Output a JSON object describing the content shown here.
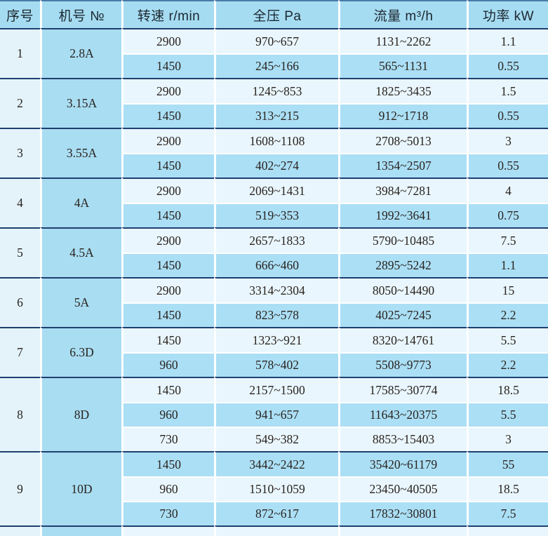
{
  "table": {
    "headers": [
      {
        "key": "serial",
        "label": "序号"
      },
      {
        "key": "model",
        "label": "机号 №"
      },
      {
        "key": "speed",
        "label": "转速 r/min"
      },
      {
        "key": "pressure",
        "label": "全压 Pa"
      },
      {
        "key": "flow",
        "label": "流量 m³/h"
      },
      {
        "key": "power",
        "label": "功率 kW"
      }
    ],
    "column_keys": [
      "speed",
      "pressure",
      "flow",
      "power"
    ],
    "groups": [
      {
        "index": "1",
        "model": "2.8A",
        "rows": [
          [
            "2900",
            "970~657",
            "1131~2262",
            "1.1"
          ],
          [
            "1450",
            "245~166",
            "565~1131",
            "0.55"
          ]
        ]
      },
      {
        "index": "2",
        "model": "3.15A",
        "rows": [
          [
            "2900",
            "1245~853",
            "1825~3435",
            "1.5"
          ],
          [
            "1450",
            "313~215",
            "912~1718",
            "0.55"
          ]
        ]
      },
      {
        "index": "3",
        "model": "3.55A",
        "rows": [
          [
            "2900",
            "1608~1108",
            "2708~5013",
            "3"
          ],
          [
            "1450",
            "402~274",
            "1354~2507",
            "0.55"
          ]
        ]
      },
      {
        "index": "4",
        "model": "4A",
        "rows": [
          [
            "2900",
            "2069~1431",
            "3984~7281",
            "4"
          ],
          [
            "1450",
            "519~353",
            "1992~3641",
            "0.75"
          ]
        ]
      },
      {
        "index": "5",
        "model": "4.5A",
        "rows": [
          [
            "2900",
            "2657~1833",
            "5790~10485",
            "7.5"
          ],
          [
            "1450",
            "666~460",
            "2895~5242",
            "1.1"
          ]
        ]
      },
      {
        "index": "6",
        "model": "5A",
        "rows": [
          [
            "2900",
            "3314~2304",
            "8050~14490",
            "15"
          ],
          [
            "1450",
            "823~578",
            "4025~7245",
            "2.2"
          ]
        ]
      },
      {
        "index": "7",
        "model": "6.3D",
        "rows": [
          [
            "1450",
            "1323~921",
            "8320~14761",
            "5.5"
          ],
          [
            "960",
            "578~402",
            "5508~9773",
            "2.2"
          ]
        ]
      },
      {
        "index": "8",
        "model": "8D",
        "rows": [
          [
            "1450",
            "2157~1500",
            "17585~30774",
            "18.5"
          ],
          [
            "960",
            "941~657",
            "11643~20375",
            "5.5"
          ],
          [
            "730",
            "549~382",
            "8853~15403",
            "3"
          ]
        ]
      },
      {
        "index": "9",
        "model": "10D",
        "rows": [
          [
            "1450",
            "3442~2422",
            "35420~61179",
            "55"
          ],
          [
            "960",
            "1510~1059",
            "23450~40505",
            "18.5"
          ],
          [
            "730",
            "872~617",
            "17832~30801",
            "7.5"
          ]
        ]
      }
    ]
  },
  "colors": {
    "header_bg": "#a6dcf2",
    "row_light": "#e9f6fd",
    "row_dark": "#abdff5",
    "serial_col_bg": "#e4f3fa",
    "model_col_bg": "#a9ddf2",
    "group_divider": "#1e3f6f",
    "top_border": "#4a7ba5",
    "cell_separator": "#ffffff",
    "header_text": "#1c2730",
    "data_text": "#29231f"
  }
}
